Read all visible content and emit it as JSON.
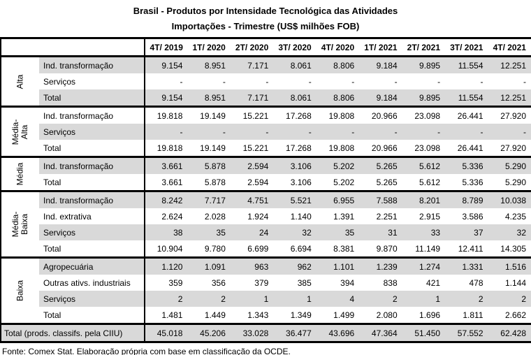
{
  "title": {
    "line1": "Brasil - Produtos por Intensidade Tecnológica das Atividades",
    "line2": "Importações - Trimestre (US$ milhões FOB)"
  },
  "table": {
    "columns": [
      "4T/ 2019",
      "1T/ 2020",
      "2T/ 2020",
      "3T/ 2020",
      "4T/ 2020",
      "1T/ 2021",
      "2T/ 2021",
      "3T/ 2021",
      "4T/ 2021"
    ],
    "groups": [
      {
        "label": "Alta",
        "slug": "alta",
        "label_display": "Alta",
        "rows": [
          {
            "label": "Ind. transformação",
            "values": [
              "9.154",
              "8.951",
              "7.171",
              "8.061",
              "8.806",
              "9.184",
              "9.895",
              "11.554",
              "12.251"
            ]
          },
          {
            "label": "Serviços",
            "values": [
              "-",
              "-",
              "-",
              "-",
              "-",
              "-",
              "-",
              "-",
              "-"
            ]
          },
          {
            "label": "Total",
            "values": [
              "9.154",
              "8.951",
              "7.171",
              "8.061",
              "8.806",
              "9.184",
              "9.895",
              "11.554",
              "12.251"
            ]
          }
        ]
      },
      {
        "label": "Média-Alta",
        "slug": "media-alta",
        "label_display": "Média-\nAlta",
        "rows": [
          {
            "label": "Ind. transformação",
            "values": [
              "19.818",
              "19.149",
              "15.221",
              "17.268",
              "19.808",
              "20.966",
              "23.098",
              "26.441",
              "27.920"
            ]
          },
          {
            "label": "Serviços",
            "values": [
              "-",
              "-",
              "-",
              "-",
              "-",
              "-",
              "-",
              "-",
              "-"
            ]
          },
          {
            "label": "Total",
            "values": [
              "19.818",
              "19.149",
              "15.221",
              "17.268",
              "19.808",
              "20.966",
              "23.098",
              "26.441",
              "27.920"
            ]
          }
        ]
      },
      {
        "label": "Média",
        "slug": "media",
        "label_display": "Média",
        "rows": [
          {
            "label": "Ind. transformação",
            "values": [
              "3.661",
              "5.878",
              "2.594",
              "3.106",
              "5.202",
              "5.265",
              "5.612",
              "5.336",
              "5.290"
            ]
          },
          {
            "label": "Total",
            "values": [
              "3.661",
              "5.878",
              "2.594",
              "3.106",
              "5.202",
              "5.265",
              "5.612",
              "5.336",
              "5.290"
            ]
          }
        ]
      },
      {
        "label": "Média-Baixa",
        "slug": "media-baixa",
        "label_display": "Média-Baixa",
        "rows": [
          {
            "label": "Ind. transformação",
            "values": [
              "8.242",
              "7.717",
              "4.751",
              "5.521",
              "6.955",
              "7.588",
              "8.201",
              "8.789",
              "10.038"
            ]
          },
          {
            "label": "Ind. extrativa",
            "values": [
              "2.624",
              "2.028",
              "1.924",
              "1.140",
              "1.391",
              "2.251",
              "2.915",
              "3.586",
              "4.235"
            ]
          },
          {
            "label": "Serviços",
            "values": [
              "38",
              "35",
              "24",
              "32",
              "35",
              "31",
              "33",
              "37",
              "32"
            ]
          },
          {
            "label": "Total",
            "values": [
              "10.904",
              "9.780",
              "6.699",
              "6.694",
              "8.381",
              "9.870",
              "11.149",
              "12.411",
              "14.305"
            ]
          }
        ]
      },
      {
        "label": "Baixa",
        "slug": "baixa",
        "label_display": "Baixa",
        "rows": [
          {
            "label": "Agropecuária",
            "values": [
              "1.120",
              "1.091",
              "963",
              "962",
              "1.101",
              "1.239",
              "1.274",
              "1.331",
              "1.516"
            ]
          },
          {
            "label": "Outras ativs. industriais",
            "values": [
              "359",
              "356",
              "379",
              "385",
              "394",
              "838",
              "421",
              "478",
              "1.144"
            ]
          },
          {
            "label": "Serviços",
            "values": [
              "2",
              "2",
              "1",
              "1",
              "4",
              "2",
              "1",
              "2",
              "2"
            ]
          },
          {
            "label": "Total",
            "values": [
              "1.481",
              "1.449",
              "1.343",
              "1.349",
              "1.499",
              "2.080",
              "1.696",
              "1.811",
              "2.662"
            ]
          }
        ]
      }
    ],
    "grand_total": {
      "label": "Total (prods. classifs. pela CIIU)",
      "values": [
        "45.018",
        "45.206",
        "33.028",
        "36.477",
        "43.696",
        "47.364",
        "51.450",
        "57.552",
        "62.428"
      ]
    }
  },
  "footer": {
    "source": "Fonte: Comex Stat. Elaboração própria com base em classificação da OCDE."
  },
  "colors": {
    "stripe": "#d9d9d9",
    "border": "#000000",
    "background": "#ffffff",
    "text": "#000000"
  },
  "chart_data": {
    "type": "table",
    "title": "Brasil - Produtos por Intensidade Tecnológica das Atividades",
    "subtitle": "Importações - Trimestre (US$ milhões FOB)",
    "unit": "US$ milhões FOB",
    "categories": [
      "4T/2019",
      "1T/2020",
      "2T/2020",
      "3T/2020",
      "4T/2020",
      "1T/2021",
      "2T/2021",
      "3T/2021",
      "4T/2021"
    ],
    "series": [
      {
        "name": "Alta — Ind. transformação",
        "values": [
          9154,
          8951,
          7171,
          8061,
          8806,
          9184,
          9895,
          11554,
          12251
        ]
      },
      {
        "name": "Alta — Serviços",
        "values": [
          null,
          null,
          null,
          null,
          null,
          null,
          null,
          null,
          null
        ]
      },
      {
        "name": "Alta — Total",
        "values": [
          9154,
          8951,
          7171,
          8061,
          8806,
          9184,
          9895,
          11554,
          12251
        ]
      },
      {
        "name": "Média-Alta — Ind. transformação",
        "values": [
          19818,
          19149,
          15221,
          17268,
          19808,
          20966,
          23098,
          26441,
          27920
        ]
      },
      {
        "name": "Média-Alta — Serviços",
        "values": [
          null,
          null,
          null,
          null,
          null,
          null,
          null,
          null,
          null
        ]
      },
      {
        "name": "Média-Alta — Total",
        "values": [
          19818,
          19149,
          15221,
          17268,
          19808,
          20966,
          23098,
          26441,
          27920
        ]
      },
      {
        "name": "Média — Ind. transformação",
        "values": [
          3661,
          5878,
          2594,
          3106,
          5202,
          5265,
          5612,
          5336,
          5290
        ]
      },
      {
        "name": "Média — Total",
        "values": [
          3661,
          5878,
          2594,
          3106,
          5202,
          5265,
          5612,
          5336,
          5290
        ]
      },
      {
        "name": "Média-Baixa — Ind. transformação",
        "values": [
          8242,
          7717,
          4751,
          5521,
          6955,
          7588,
          8201,
          8789,
          10038
        ]
      },
      {
        "name": "Média-Baixa — Ind. extrativa",
        "values": [
          2624,
          2028,
          1924,
          1140,
          1391,
          2251,
          2915,
          3586,
          4235
        ]
      },
      {
        "name": "Média-Baixa — Serviços",
        "values": [
          38,
          35,
          24,
          32,
          35,
          31,
          33,
          37,
          32
        ]
      },
      {
        "name": "Média-Baixa — Total",
        "values": [
          10904,
          9780,
          6699,
          6694,
          8381,
          9870,
          11149,
          12411,
          14305
        ]
      },
      {
        "name": "Baixa — Agropecuária",
        "values": [
          1120,
          1091,
          963,
          962,
          1101,
          1239,
          1274,
          1331,
          1516
        ]
      },
      {
        "name": "Baixa — Outras ativs. industriais",
        "values": [
          359,
          356,
          379,
          385,
          394,
          838,
          421,
          478,
          1144
        ]
      },
      {
        "name": "Baixa — Serviços",
        "values": [
          2,
          2,
          1,
          1,
          4,
          2,
          1,
          2,
          2
        ]
      },
      {
        "name": "Baixa — Total",
        "values": [
          1481,
          1449,
          1343,
          1349,
          1499,
          2080,
          1696,
          1811,
          2662
        ]
      },
      {
        "name": "Total (prods. classifs. pela CIIU)",
        "values": [
          45018,
          45206,
          33028,
          36477,
          43696,
          47364,
          51450,
          57552,
          62428
        ]
      }
    ]
  }
}
